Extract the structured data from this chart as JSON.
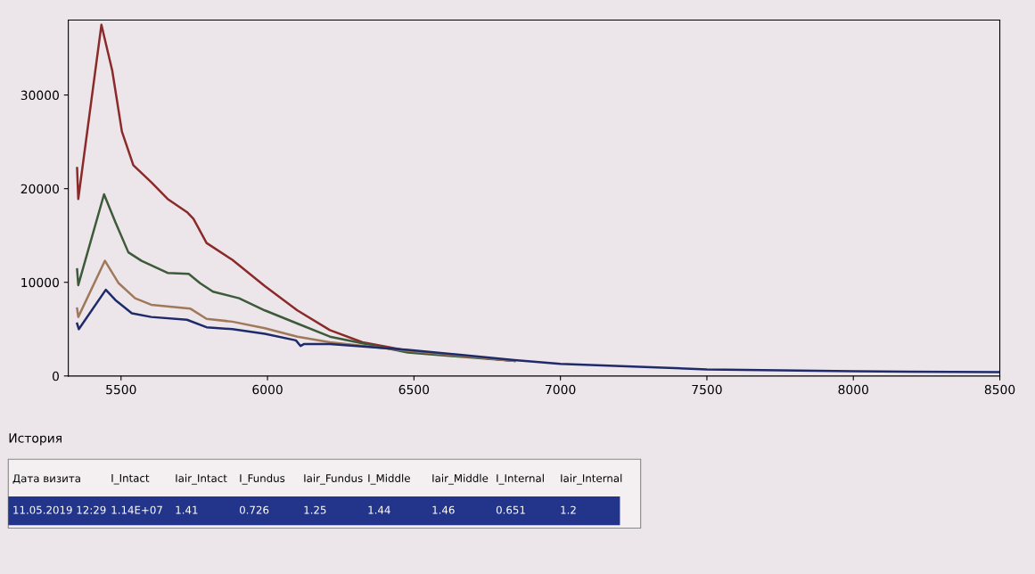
{
  "chart_data": {
    "type": "line",
    "xlim": [
      5320,
      8500
    ],
    "ylim": [
      0,
      38000
    ],
    "xticks": [
      5500,
      6000,
      6500,
      7000,
      7500,
      8000,
      8500
    ],
    "yticks": [
      0,
      10000,
      20000,
      30000
    ],
    "grid": false,
    "marker": "none",
    "line_style": "solid",
    "series": [
      {
        "color": "#8b2a2a",
        "x": [
          5350,
          5354,
          5433,
          5470,
          5503,
          5542,
          5603,
          5659,
          5725,
          5747,
          5792,
          5880,
          5991,
          6102,
          6213,
          6324,
          6479,
          6843
        ],
        "values": [
          22200,
          18900,
          37500,
          32600,
          26100,
          22500,
          20700,
          18900,
          17500,
          16800,
          14200,
          12400,
          9600,
          7000,
          4900,
          3600,
          2700,
          1600
        ]
      },
      {
        "color": "#3d5a3a",
        "x": [
          5350,
          5354,
          5442,
          5481,
          5525,
          5570,
          5659,
          5731,
          5770,
          5814,
          5903,
          5991,
          6102,
          6213,
          6479,
          6843
        ],
        "values": [
          11400,
          9700,
          19400,
          16400,
          13200,
          12300,
          11000,
          10900,
          9900,
          9000,
          8300,
          7000,
          5600,
          4200,
          2500,
          1600
        ]
      },
      {
        "color": "#a0785a",
        "x": [
          5350,
          5354,
          5445,
          5492,
          5548,
          5603,
          5736,
          5792,
          5880,
          5991,
          6102,
          6213,
          6479,
          6843
        ],
        "values": [
          7200,
          6300,
          12300,
          9900,
          8300,
          7600,
          7200,
          6100,
          5800,
          5100,
          4200,
          3600,
          2700,
          1600
        ]
      },
      {
        "color": "#1f2a6b",
        "x": [
          5350,
          5356,
          5448,
          5481,
          5537,
          5603,
          5725,
          5792,
          5880,
          5991,
          6097,
          6113,
          6124,
          6213,
          6479,
          6843,
          7000,
          7500,
          8000,
          8500
        ],
        "values": [
          5600,
          5000,
          9200,
          8100,
          6700,
          6300,
          6000,
          5200,
          5000,
          4500,
          3800,
          3200,
          3400,
          3400,
          2800,
          1700,
          1300,
          700,
          500,
          400
        ]
      }
    ],
    "annotations": [
      "История",
      "Дата визита",
      "I_Intact",
      "Iair_Intact",
      "I_Fundus",
      "Iair_Fundus",
      "I_Middle",
      "Iair_Middle",
      "I_Internal",
      "Iair_Internal",
      "11.05.2019 12:29",
      "1.14E+07",
      "1.41",
      "0.726",
      "1.25",
      "1.44",
      "1.46",
      "0.651",
      "1.2"
    ]
  }
}
